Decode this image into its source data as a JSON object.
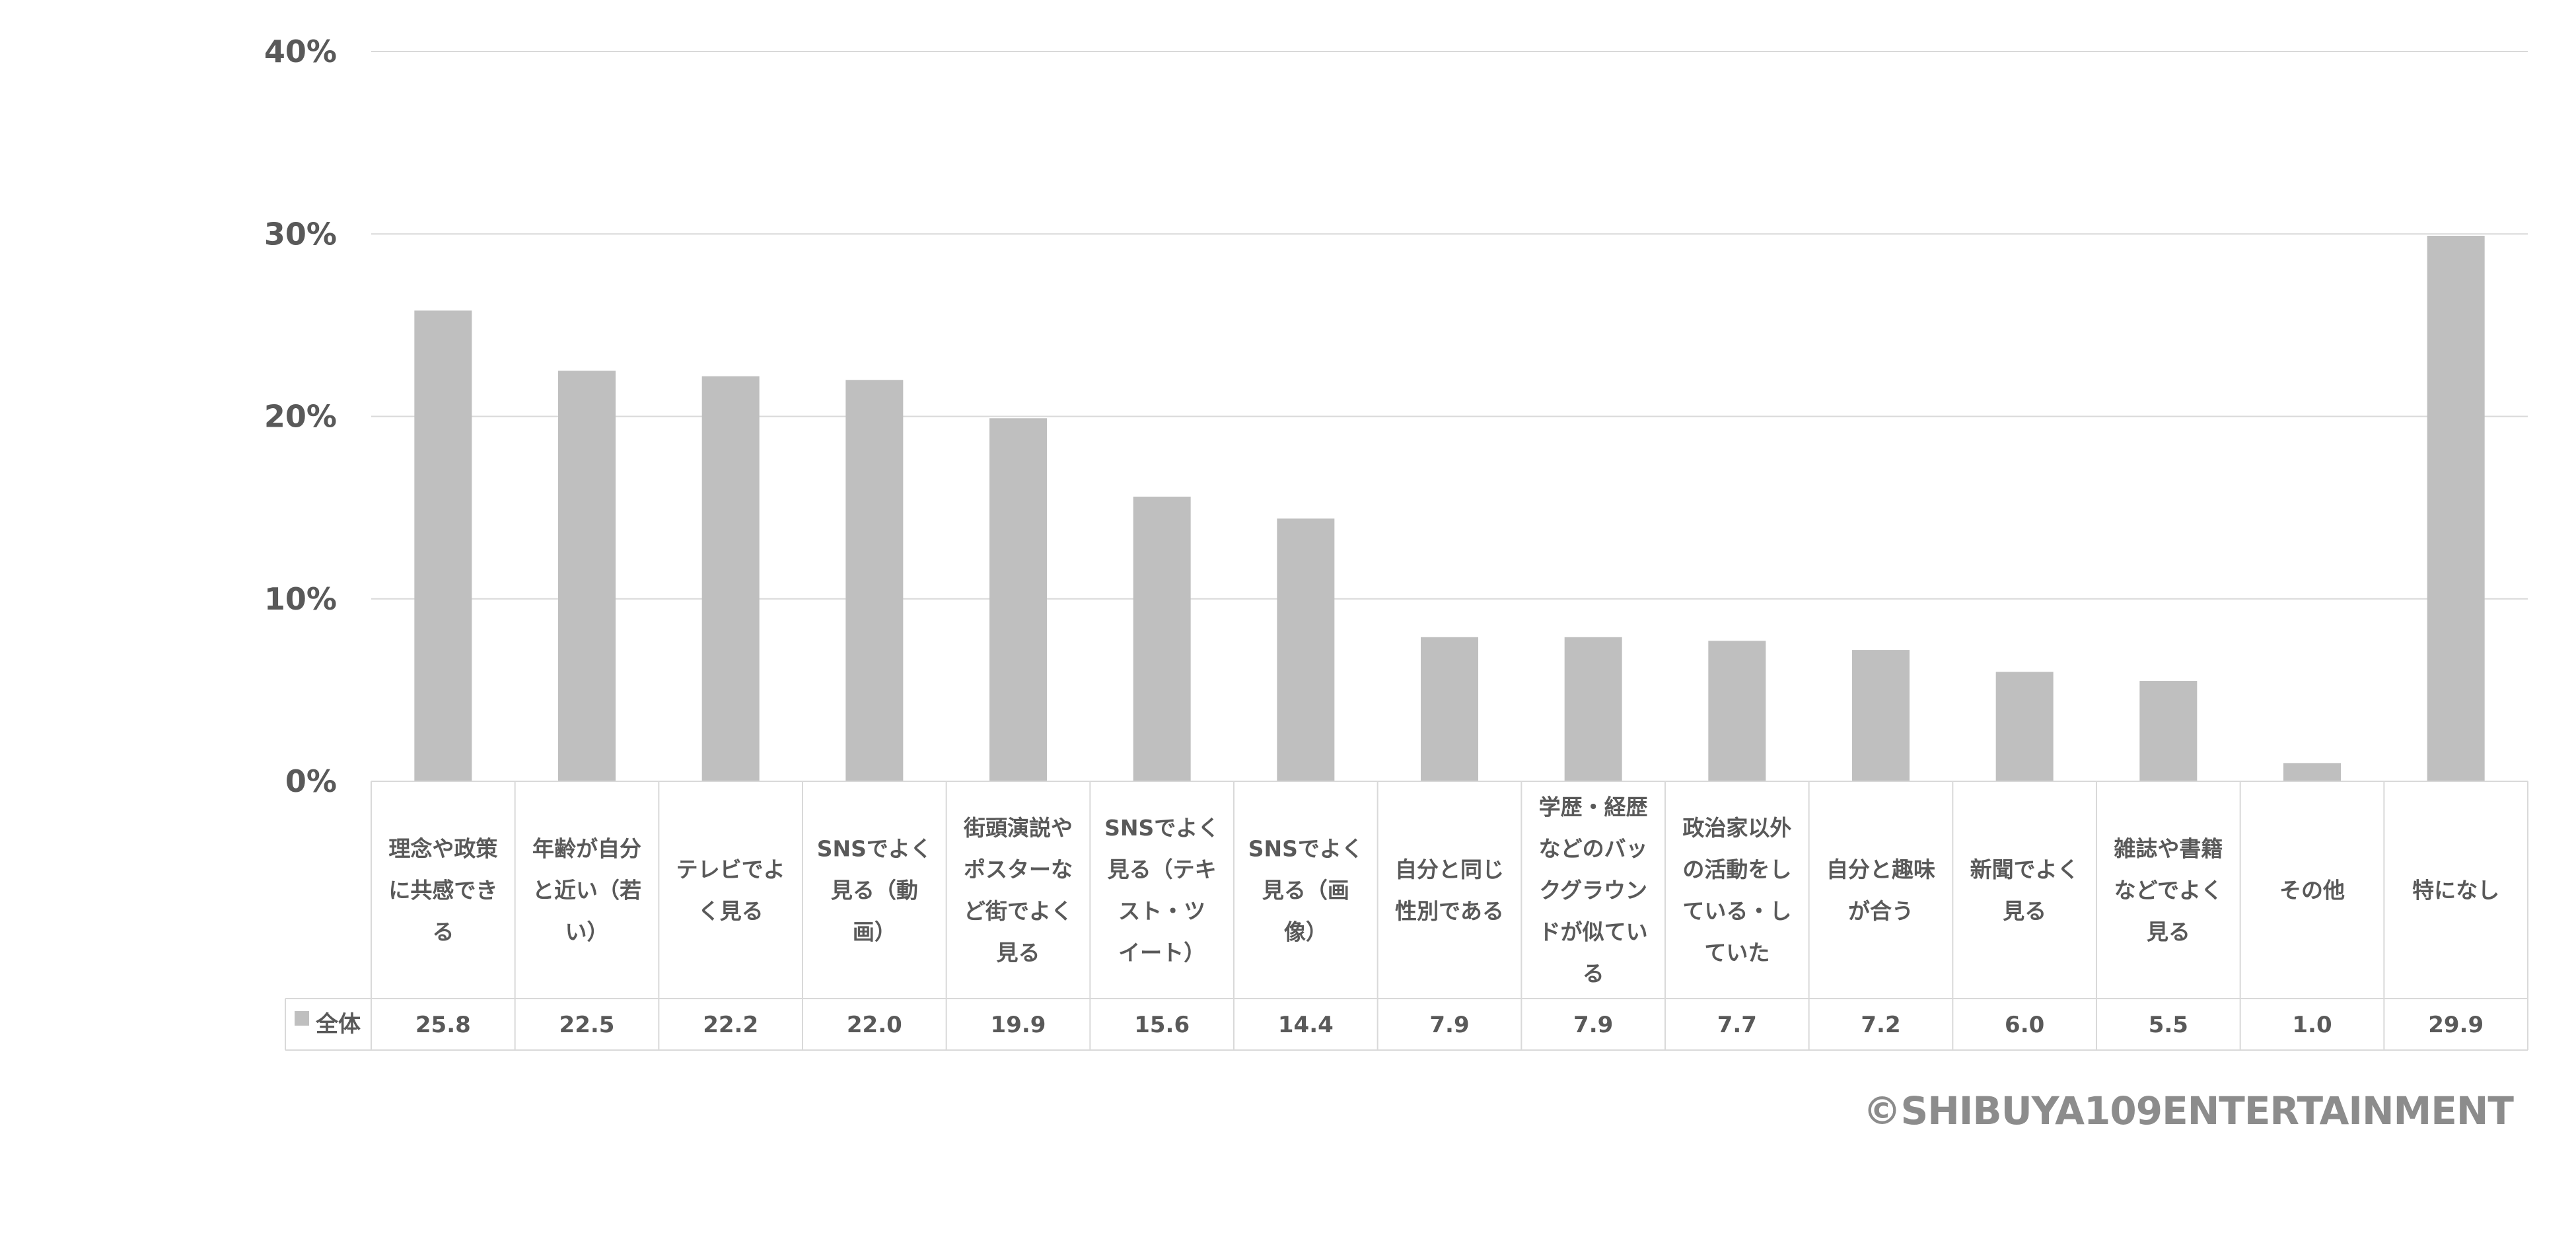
{
  "chart_data": {
    "type": "bar",
    "categories": [
      "理念や政策に共感できる",
      "年齢が自分と近い（若い）",
      "テレビでよく見る",
      "SNSでよく見る（動画）",
      "街頭演説やポスターなど街でよく見る",
      "SNSでよく見る（テキスト・ツイート）",
      "SNSでよく見る（画像）",
      "自分と同じ性別である",
      "学歴・経歴などのバックグラウンドが似ている",
      "政治家以外の活動をしている・していた",
      "自分と趣味が合う",
      "新聞でよく見る",
      "雑誌や書籍などでよく見る",
      "その他",
      "特になし"
    ],
    "category_lines": [
      [
        "理念や政策",
        "に共感でき",
        "る"
      ],
      [
        "年齢が自分",
        "と近い（若",
        "い）"
      ],
      [
        "テレビでよ",
        "く見る"
      ],
      [
        "SNSでよく",
        "見る（動",
        "画）"
      ],
      [
        "街頭演説や",
        "ポスターな",
        "ど街でよく",
        "見る"
      ],
      [
        "SNSでよく",
        "見る（テキ",
        "スト・ツ",
        "イート）"
      ],
      [
        "SNSでよく",
        "見る（画",
        "像）"
      ],
      [
        "自分と同じ",
        "性別である"
      ],
      [
        "学歴・経歴",
        "などのバッ",
        "クグラウン",
        "ドが似てい",
        "る"
      ],
      [
        "政治家以外",
        "の活動をし",
        "ている・し",
        "ていた"
      ],
      [
        "自分と趣味",
        "が合う"
      ],
      [
        "新聞でよく",
        "見る"
      ],
      [
        "雑誌や書籍",
        "などでよく",
        "見る"
      ],
      [
        "その他"
      ],
      [
        "特になし"
      ]
    ],
    "series": [
      {
        "name": "全体",
        "values": [
          25.8,
          22.5,
          22.2,
          22.0,
          19.9,
          15.6,
          14.4,
          7.9,
          7.9,
          7.7,
          7.2,
          6.0,
          5.5,
          1.0,
          29.9
        ]
      }
    ],
    "value_labels": [
      "25.8",
      "22.5",
      "22.2",
      "22.0",
      "19.9",
      "15.6",
      "14.4",
      "7.9",
      "7.9",
      "7.7",
      "7.2",
      "6.0",
      "5.5",
      "1.0",
      "29.9"
    ],
    "y_ticks": [
      "0%",
      "10%",
      "20%",
      "30%",
      "40%"
    ],
    "ylim": [
      0,
      40
    ],
    "grid": true,
    "data_table": true,
    "bar_color": "#bfbfbf",
    "grid_color": "#d9d9d9",
    "text_color": "#595959"
  },
  "copyright": "©SHIBUYA109ENTERTAINMENT"
}
